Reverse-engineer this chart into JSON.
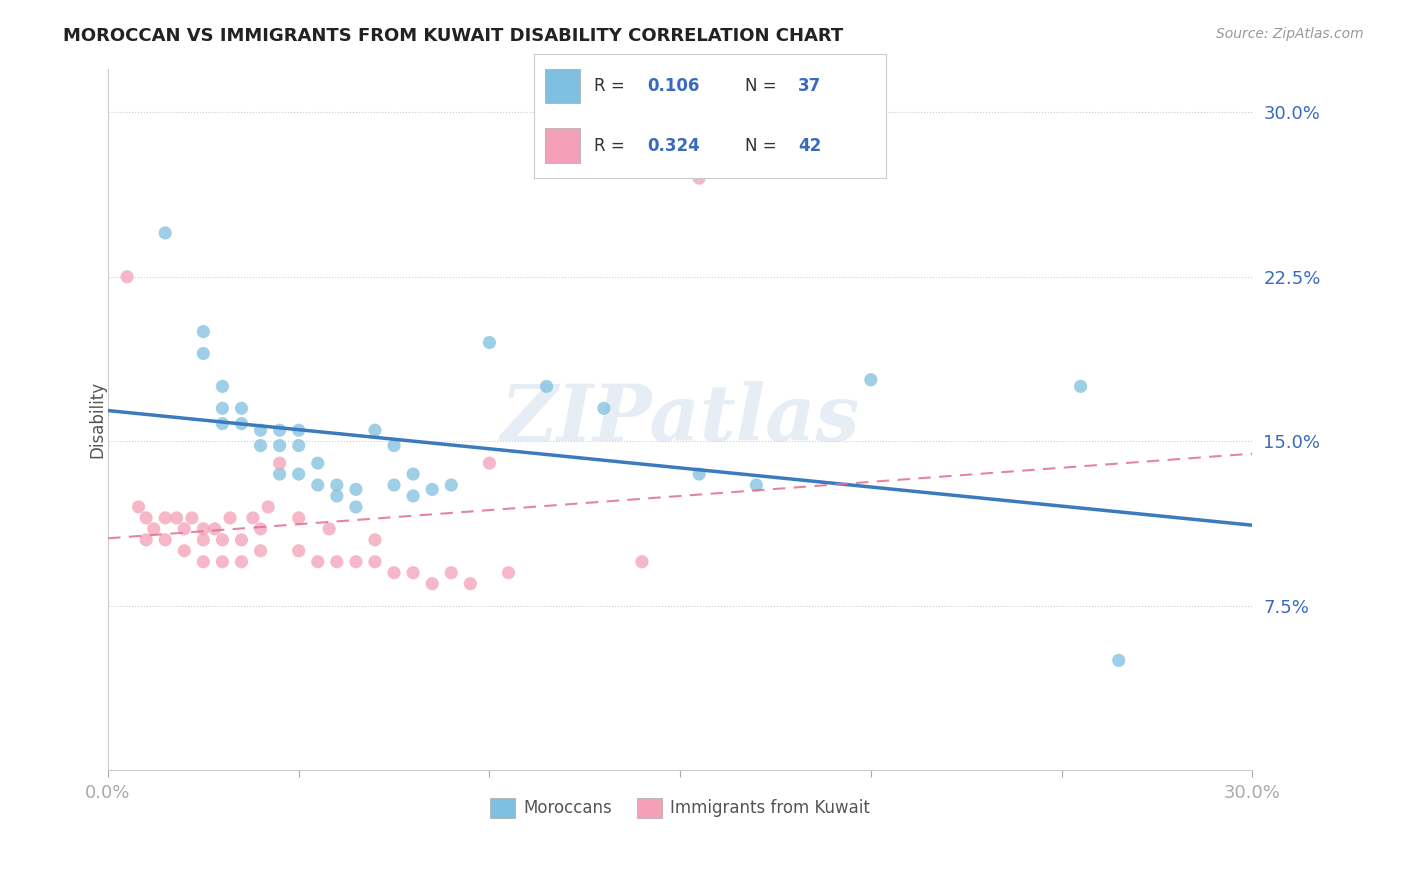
{
  "title": "MOROCCAN VS IMMIGRANTS FROM KUWAIT DISABILITY CORRELATION CHART",
  "source": "Source: ZipAtlas.com",
  "ylabel": "Disability",
  "xlim": [
    0.0,
    0.3
  ],
  "ylim": [
    0.0,
    0.32
  ],
  "ytick_positions": [
    0.075,
    0.15,
    0.225,
    0.3
  ],
  "ytick_labels": [
    "7.5%",
    "15.0%",
    "22.5%",
    "30.0%"
  ],
  "moroccan_color": "#7fbfdf",
  "kuwait_color": "#f4a0b8",
  "moroccan_line_color": "#3a7abf",
  "kuwait_line_color": "#e07090",
  "moroccan_R": 0.106,
  "moroccan_N": 37,
  "kuwait_R": 0.324,
  "kuwait_N": 42,
  "legend_label_1": "Moroccans",
  "legend_label_2": "Immigrants from Kuwait",
  "watermark": "ZIPatlas",
  "moroccan_x": [
    0.015,
    0.025,
    0.025,
    0.03,
    0.03,
    0.03,
    0.035,
    0.035,
    0.04,
    0.04,
    0.045,
    0.045,
    0.045,
    0.05,
    0.05,
    0.05,
    0.055,
    0.055,
    0.06,
    0.06,
    0.065,
    0.065,
    0.07,
    0.075,
    0.075,
    0.08,
    0.08,
    0.085,
    0.09,
    0.1,
    0.115,
    0.13,
    0.155,
    0.17,
    0.2,
    0.255,
    0.265
  ],
  "moroccan_y": [
    0.245,
    0.2,
    0.19,
    0.175,
    0.165,
    0.158,
    0.165,
    0.158,
    0.155,
    0.148,
    0.155,
    0.148,
    0.135,
    0.155,
    0.148,
    0.135,
    0.14,
    0.13,
    0.13,
    0.125,
    0.128,
    0.12,
    0.155,
    0.148,
    0.13,
    0.125,
    0.135,
    0.128,
    0.13,
    0.195,
    0.175,
    0.165,
    0.135,
    0.13,
    0.178,
    0.175,
    0.05
  ],
  "kuwait_x": [
    0.005,
    0.008,
    0.01,
    0.01,
    0.012,
    0.015,
    0.015,
    0.018,
    0.02,
    0.02,
    0.022,
    0.025,
    0.025,
    0.025,
    0.028,
    0.03,
    0.03,
    0.032,
    0.035,
    0.035,
    0.038,
    0.04,
    0.04,
    0.042,
    0.045,
    0.05,
    0.05,
    0.055,
    0.058,
    0.06,
    0.065,
    0.07,
    0.07,
    0.075,
    0.08,
    0.085,
    0.09,
    0.095,
    0.1,
    0.105,
    0.14,
    0.155
  ],
  "kuwait_y": [
    0.225,
    0.12,
    0.115,
    0.105,
    0.11,
    0.115,
    0.105,
    0.115,
    0.11,
    0.1,
    0.115,
    0.11,
    0.105,
    0.095,
    0.11,
    0.105,
    0.095,
    0.115,
    0.105,
    0.095,
    0.115,
    0.11,
    0.1,
    0.12,
    0.14,
    0.1,
    0.115,
    0.095,
    0.11,
    0.095,
    0.095,
    0.095,
    0.105,
    0.09,
    0.09,
    0.085,
    0.09,
    0.085,
    0.14,
    0.09,
    0.095,
    0.27
  ]
}
